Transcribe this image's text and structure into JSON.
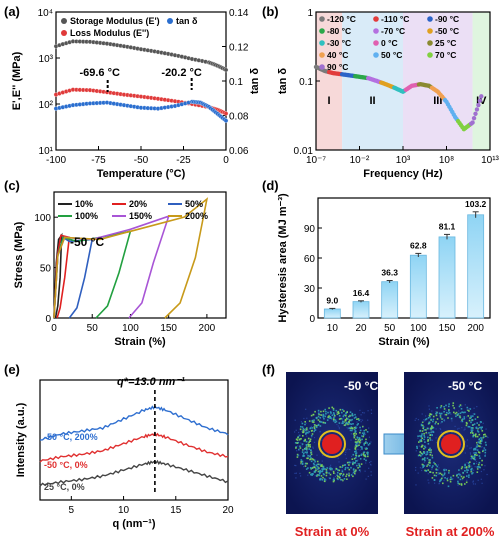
{
  "panels": {
    "a": {
      "label": "(a)"
    },
    "b": {
      "label": "(b)"
    },
    "c": {
      "label": "(c)"
    },
    "d": {
      "label": "(d)"
    },
    "e": {
      "label": "(e)"
    },
    "f": {
      "label": "(f)"
    }
  },
  "chart_data": [
    {
      "id": "a",
      "type": "scatter",
      "xlabel": "Temperature (°C)",
      "ylabel": "E',E'' (MPa)",
      "y2label": "tan δ",
      "xlim": [
        -100,
        0
      ],
      "ylim": [
        10,
        10000
      ],
      "yscale": "log",
      "y2lim": [
        0.06,
        0.14
      ],
      "xticks": [
        "-100",
        "-75",
        "-50",
        "-25",
        "0"
      ],
      "yticks": [
        "10¹",
        "10²",
        "10³",
        "10⁴"
      ],
      "y2ticks": [
        "0.06",
        "0.08",
        "0.1",
        "0.12",
        "0.14"
      ],
      "legend": [
        {
          "name": "Storage Modulus (E')",
          "color": "#555555"
        },
        {
          "name": "tan δ",
          "color": "#2a6ecf"
        },
        {
          "name": "Loss Modulus (E'')",
          "color": "#e03a3a"
        }
      ],
      "annotations": [
        "-69.6 °C",
        "-20.2 °C"
      ],
      "series": [
        {
          "key": "storage",
          "color": "#555555",
          "axis": "left",
          "x": [
            -100,
            -90,
            -80,
            -70,
            -60,
            -50,
            -40,
            -30,
            -20,
            -10,
            -5,
            0
          ],
          "y": [
            1800,
            2300,
            2250,
            2050,
            1800,
            1550,
            1350,
            1150,
            950,
            800,
            680,
            550
          ]
        },
        {
          "key": "loss",
          "color": "#e03a3a",
          "axis": "left",
          "x": [
            -100,
            -90,
            -80,
            -70,
            -60,
            -50,
            -40,
            -30,
            -20,
            -10,
            -5,
            0
          ],
          "y": [
            160,
            205,
            200,
            180,
            160,
            145,
            130,
            115,
            100,
            85,
            75,
            62
          ]
        },
        {
          "key": "tand",
          "color": "#2a6ecf",
          "axis": "right",
          "x": [
            -100,
            -90,
            -80,
            -70,
            -60,
            -50,
            -40,
            -30,
            -20,
            -15,
            -10,
            -5,
            0
          ],
          "y": [
            0.084,
            0.086,
            0.087,
            0.0875,
            0.086,
            0.0845,
            0.084,
            0.0855,
            0.088,
            0.0875,
            0.085,
            0.081,
            0.077
          ]
        }
      ]
    },
    {
      "id": "b",
      "type": "line",
      "xlabel": "Frequency (Hz)",
      "ylabel": "tan δ",
      "xscale": "log",
      "yscale": "log",
      "xlim": [
        1e-07,
        10000000000000.0
      ],
      "ylim": [
        0.01,
        1
      ],
      "xticks": [
        "10⁻⁷",
        "10⁻²",
        "10³",
        "10⁸",
        "10¹³"
      ],
      "yticks": [
        "0.01",
        "0.1",
        "1"
      ],
      "regions": [
        {
          "label": "I",
          "from": 1e-07,
          "to": 0.0001,
          "color": "#f4cccc"
        },
        {
          "label": "II",
          "from": 0.0001,
          "to": 1000.0,
          "color": "#cce4f6"
        },
        {
          "label": "III",
          "from": 1000.0,
          "to": 100000000000.0,
          "color": "#e4d4f2"
        },
        {
          "label": "IV",
          "from": 100000000000.0,
          "to": 10000000000000.0,
          "color": "#d4f2d4"
        }
      ],
      "legend": [
        {
          "name": "-120 °C",
          "color": "#7a7a7a"
        },
        {
          "name": "-110 °C",
          "color": "#e23c3c"
        },
        {
          "name": "-90 °C",
          "color": "#2b63c8"
        },
        {
          "name": "-80 °C",
          "color": "#2aa84a"
        },
        {
          "name": "-70 °C",
          "color": "#b470e0"
        },
        {
          "name": "-50 °C",
          "color": "#e0a020"
        },
        {
          "name": "-30 °C",
          "color": "#30c0c0"
        },
        {
          "name": "0 °C",
          "color": "#e060b0"
        },
        {
          "name": "25 °C",
          "color": "#8a8a30"
        },
        {
          "name": "40 °C",
          "color": "#f0a050"
        },
        {
          "name": "50 °C",
          "color": "#60b0f0"
        },
        {
          "name": "70 °C",
          "color": "#80d040"
        },
        {
          "name": "90 °C",
          "color": "#a070d0"
        }
      ],
      "series": [
        {
          "name": "master curve",
          "x": [
            1e-07,
            1e-06,
            1e-05,
            0.0001,
            0.001,
            0.01,
            0.1,
            1,
            10,
            100,
            1000.0,
            10000.0,
            100000.0,
            1000000.0,
            10000000.0,
            100000000.0,
            1000000000.0,
            10000000000.0,
            100000000000.0,
            1000000000000.0
          ],
          "y": [
            0.16,
            0.14,
            0.13,
            0.125,
            0.12,
            0.115,
            0.11,
            0.1,
            0.09,
            0.08,
            0.07,
            0.085,
            0.09,
            0.085,
            0.07,
            0.05,
            0.03,
            0.02,
            0.025,
            0.06
          ]
        }
      ]
    },
    {
      "id": "c",
      "type": "line",
      "xlabel": "Strain (%)",
      "ylabel": "Stress (MPa)",
      "xlim": [
        0,
        225
      ],
      "ylim": [
        0,
        125
      ],
      "xticks": [
        "0",
        "50",
        "100",
        "150",
        "200"
      ],
      "yticks": [
        "0",
        "50",
        "100"
      ],
      "annotation": "-50 °C",
      "legend": [
        {
          "name": "10%",
          "color": "#222222"
        },
        {
          "name": "20%",
          "color": "#e02020"
        },
        {
          "name": "50%",
          "color": "#2f5fbf"
        },
        {
          "name": "100%",
          "color": "#22a040"
        },
        {
          "name": "150%",
          "color": "#a855d6"
        },
        {
          "name": "200%",
          "color": "#c89a1a"
        }
      ],
      "series": [
        {
          "name": "10%",
          "x": [
            0,
            3,
            6,
            10,
            8,
            5,
            2
          ],
          "y": [
            0,
            55,
            78,
            82,
            40,
            12,
            0
          ]
        },
        {
          "name": "20%",
          "x": [
            0,
            4,
            9,
            20,
            14,
            8,
            4
          ],
          "y": [
            0,
            60,
            82,
            80,
            40,
            10,
            0
          ]
        },
        {
          "name": "50%",
          "x": [
            0,
            5,
            12,
            20,
            50,
            40,
            30,
            20
          ],
          "y": [
            0,
            62,
            80,
            76,
            78,
            40,
            10,
            0
          ]
        },
        {
          "name": "100%",
          "x": [
            0,
            5,
            12,
            30,
            60,
            100,
            85,
            70,
            55
          ],
          "y": [
            0,
            62,
            80,
            76,
            80,
            86,
            45,
            12,
            0
          ]
        },
        {
          "name": "150%",
          "x": [
            0,
            5,
            14,
            50,
            100,
            150,
            130,
            115,
            98
          ],
          "y": [
            0,
            62,
            80,
            78,
            88,
            101,
            55,
            15,
            0
          ]
        },
        {
          "name": "200%",
          "x": [
            0,
            5,
            14,
            60,
            120,
            170,
            200,
            185,
            165,
            145
          ],
          "y": [
            0,
            62,
            80,
            78,
            90,
            100,
            118,
            60,
            15,
            0
          ]
        }
      ]
    },
    {
      "id": "d",
      "type": "bar",
      "xlabel": "Strain (%)",
      "ylabel": "Hysteresis area (MJ m⁻³)",
      "ylim": [
        0,
        120
      ],
      "yticks": [
        "0",
        "30",
        "60",
        "90"
      ],
      "categories": [
        "10",
        "20",
        "50",
        "100",
        "150",
        "200"
      ],
      "values": [
        9.0,
        16.4,
        36.3,
        62.8,
        81.1,
        103.2
      ],
      "value_labels": [
        "9.0",
        "16.4",
        "36.3",
        "62.8",
        "81.1",
        "103.2"
      ],
      "errors": [
        0.6,
        0.8,
        1.2,
        1.8,
        2.5,
        3.0
      ]
    },
    {
      "id": "e",
      "type": "line",
      "xlabel": "q (nm⁻¹)",
      "ylabel": "Intensity (a.u.)",
      "xlim": [
        2,
        20
      ],
      "xticks": [
        "5",
        "10",
        "15",
        "20"
      ],
      "annotation": "q*=13.0 nm⁻¹",
      "series": [
        {
          "name": "-50 °C, 200%",
          "color": "#2f6fd0",
          "x": [
            2,
            4,
            6,
            8,
            10,
            12,
            13,
            14,
            16,
            18,
            20
          ],
          "y": [
            0.8,
            0.9,
            0.95,
            1.0,
            1.15,
            1.3,
            1.35,
            1.3,
            1.15,
            1.0,
            0.9
          ]
        },
        {
          "name": "-50 °C, 0%",
          "color": "#e03030",
          "x": [
            2,
            4,
            6,
            8,
            10,
            12,
            13,
            14,
            16,
            18,
            20
          ],
          "y": [
            0.45,
            0.52,
            0.56,
            0.62,
            0.74,
            0.86,
            0.9,
            0.85,
            0.72,
            0.6,
            0.52
          ]
        },
        {
          "name": "25 °C, 0%",
          "color": "#444444",
          "x": [
            2,
            4,
            6,
            8,
            10,
            12,
            13,
            14,
            16,
            18,
            20
          ],
          "y": [
            0.05,
            0.1,
            0.14,
            0.2,
            0.3,
            0.4,
            0.44,
            0.4,
            0.3,
            0.2,
            0.1
          ]
        }
      ]
    }
  ],
  "waxs": {
    "left": {
      "temp": "-50 °C",
      "caption": "Strain at 0%"
    },
    "right": {
      "temp": "-50 °C",
      "caption": "Strain at 200%"
    }
  }
}
